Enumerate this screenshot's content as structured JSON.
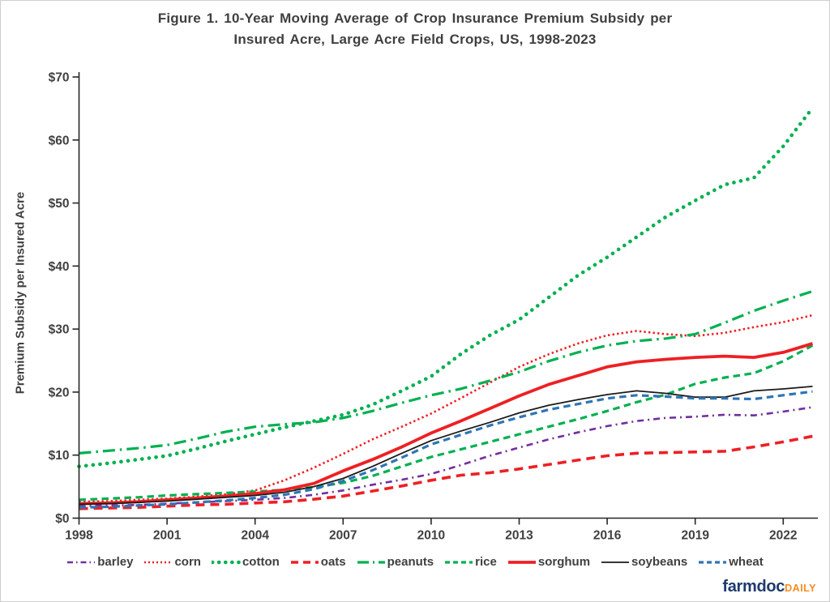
{
  "figure": {
    "title_line1": "Figure 1. 10-Year Moving Average of Crop Insurance Premium Subsidy per",
    "title_line2": "Insured Acre, Large Acre Field Crops, US, 1998-2023",
    "source_logo": {
      "main": "farmdoc",
      "sub": "DAILY",
      "main_color": "#1e3a6e",
      "sub_color": "#f68c1e"
    }
  },
  "chart_data": {
    "type": "line",
    "title": "Figure 1. 10-Year Moving Average of Crop Insurance Premium Subsidy per Insured Acre, Large Acre Field Crops, US, 1998-2023",
    "xlabel": "",
    "ylabel": "Premium Subsidy per Insured Acre",
    "xlim": [
      1998,
      2023.3
    ],
    "ylim": [
      0,
      70
    ],
    "grid": false,
    "legend_position": "bottom",
    "xticks": [
      1998,
      2001,
      2004,
      2007,
      2010,
      2013,
      2016,
      2019,
      2022
    ],
    "yticks": [
      0,
      10,
      20,
      30,
      40,
      50,
      60,
      70
    ],
    "ytick_labels": [
      "$0",
      "$10",
      "$20",
      "$30",
      "$40",
      "$50",
      "$60",
      "$70"
    ],
    "x": [
      1998,
      1999,
      2000,
      2001,
      2002,
      2003,
      2004,
      2005,
      2006,
      2007,
      2008,
      2009,
      2010,
      2011,
      2012,
      2013,
      2014,
      2015,
      2016,
      2017,
      2018,
      2019,
      2020,
      2021,
      2022,
      2023
    ],
    "series": [
      {
        "name": "barley",
        "color": "#7030A0",
        "values": [
          1.9,
          2.0,
          2.1,
          2.3,
          2.5,
          2.7,
          2.9,
          3.2,
          3.7,
          4.4,
          5.3,
          6.1,
          7.0,
          8.4,
          9.9,
          11.2,
          12.5,
          13.6,
          14.6,
          15.4,
          15.9,
          16.1,
          16.4,
          16.3,
          16.9,
          17.6
        ],
        "style": {
          "width": 2.6,
          "dash": "8 5 2 5",
          "cap": "butt"
        },
        "legend_dash": "7 4 1.5 4"
      },
      {
        "name": "corn",
        "color": "#ED2024",
        "values": [
          2.6,
          2.7,
          2.9,
          3.1,
          3.4,
          3.8,
          4.4,
          6.0,
          8.0,
          10.2,
          12.5,
          14.5,
          16.6,
          19.0,
          21.5,
          24.0,
          26.0,
          27.7,
          29.0,
          29.7,
          29.2,
          28.9,
          29.4,
          30.3,
          31.1,
          32.2
        ],
        "style": {
          "width": 2.6,
          "dash": "2.4 3.2",
          "cap": "butt"
        },
        "legend_dash": "2 3"
      },
      {
        "name": "cotton",
        "color": "#00B050",
        "values": [
          8.2,
          8.7,
          9.3,
          9.9,
          11.0,
          12.2,
          13.3,
          14.4,
          15.4,
          16.4,
          18.0,
          20.2,
          22.5,
          26.0,
          29.0,
          31.5,
          35.0,
          38.5,
          41.4,
          44.6,
          47.8,
          50.4,
          52.9,
          54.0,
          59.0,
          65.1
        ],
        "style": {
          "width": 4.6,
          "dash": "0.1 8.6",
          "cap": "round"
        },
        "legend_dash": "0.1 8"
      },
      {
        "name": "oats",
        "color": "#ED2024",
        "values": [
          1.5,
          1.6,
          1.7,
          1.9,
          2.1,
          2.2,
          2.4,
          2.6,
          3.0,
          3.5,
          4.3,
          5.1,
          6.0,
          6.8,
          7.2,
          7.8,
          8.5,
          9.2,
          9.9,
          10.3,
          10.4,
          10.5,
          10.6,
          11.3,
          12.1,
          13.0
        ],
        "style": {
          "width": 3.6,
          "dash": "11 7",
          "cap": "butt"
        },
        "legend_dash": "9 6"
      },
      {
        "name": "peanuts",
        "color": "#00B050",
        "values": [
          10.3,
          10.7,
          11.1,
          11.6,
          12.6,
          13.7,
          14.5,
          14.9,
          15.2,
          15.9,
          17.0,
          18.3,
          19.5,
          20.5,
          21.8,
          23.2,
          24.9,
          26.3,
          27.4,
          28.1,
          28.5,
          29.2,
          31.0,
          32.9,
          34.5,
          36.0
        ],
        "style": {
          "width": 3.2,
          "dash": "15 6 2.5 6",
          "cap": "butt"
        },
        "legend_dash": "14 5 2 5"
      },
      {
        "name": "rice",
        "color": "#00B050",
        "values": [
          2.9,
          3.1,
          3.3,
          3.6,
          3.8,
          4.0,
          4.2,
          4.5,
          4.9,
          5.6,
          6.7,
          8.2,
          9.7,
          10.9,
          12.1,
          13.3,
          14.5,
          15.7,
          17.0,
          18.4,
          19.6,
          21.3,
          22.3,
          23.0,
          24.9,
          27.4
        ],
        "style": {
          "width": 3.2,
          "dash": "8.5 5.5",
          "cap": "butt"
        },
        "legend_dash": "6 4"
      },
      {
        "name": "sorghum",
        "color": "#ED2024",
        "values": [
          2.3,
          2.4,
          2.6,
          2.9,
          3.2,
          3.5,
          3.9,
          4.5,
          5.5,
          7.5,
          9.3,
          11.3,
          13.5,
          15.4,
          17.4,
          19.4,
          21.2,
          22.6,
          24.0,
          24.8,
          25.2,
          25.5,
          25.7,
          25.5,
          26.3,
          27.7
        ],
        "style": {
          "width": 3.8,
          "dash": "",
          "cap": "butt"
        },
        "legend_dash": ""
      },
      {
        "name": "soybeans",
        "color": "#1a1a1a",
        "values": [
          2.2,
          2.3,
          2.5,
          2.7,
          3.0,
          3.3,
          3.6,
          4.1,
          5.0,
          6.3,
          8.2,
          10.3,
          12.3,
          13.8,
          15.2,
          16.7,
          17.9,
          18.8,
          19.6,
          20.2,
          19.8,
          19.2,
          19.2,
          20.2,
          20.5,
          20.9
        ],
        "style": {
          "width": 1.8,
          "dash": "",
          "cap": "butt"
        },
        "legend_dash": ""
      },
      {
        "name": "wheat",
        "color": "#2E75B6",
        "values": [
          1.7,
          1.8,
          2.0,
          2.2,
          2.5,
          2.8,
          3.2,
          3.7,
          4.6,
          5.9,
          7.6,
          9.6,
          11.7,
          13.2,
          14.7,
          16.0,
          17.2,
          18.1,
          19.0,
          19.5,
          19.3,
          19.0,
          19.0,
          18.9,
          19.5,
          20.1
        ],
        "style": {
          "width": 3.2,
          "dash": "8.5 5.5",
          "cap": "butt"
        },
        "legend_dash": "6 4"
      }
    ],
    "axis_color": "#262626",
    "label_color": "#404040"
  }
}
